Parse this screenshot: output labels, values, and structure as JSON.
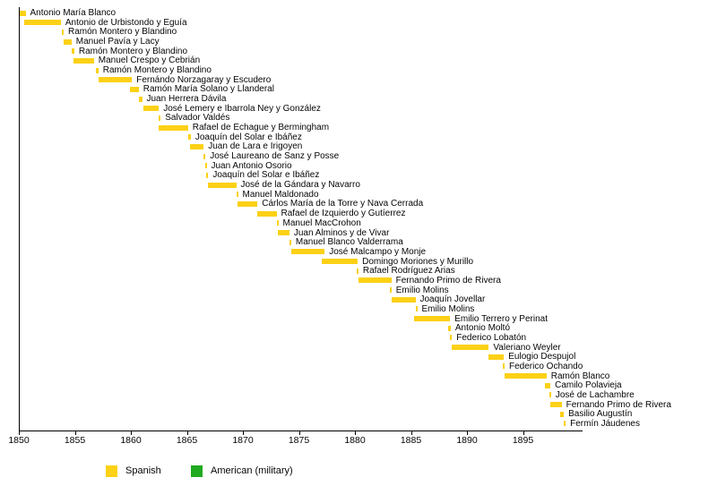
{
  "chart_data": {
    "type": "bar",
    "variant": "horizontal-timeline-gantt",
    "title": "",
    "xlabel": "",
    "ylabel": "",
    "x_axis": {
      "min": 1850,
      "max": 1900,
      "tick_interval": 5,
      "ticks": [
        1850,
        1855,
        1860,
        1865,
        1870,
        1875,
        1880,
        1885,
        1890,
        1895
      ]
    },
    "grid": "off",
    "legend_position": "bottom",
    "legend": [
      {
        "label": "Spanish",
        "color": "#FCD116"
      },
      {
        "label": "American (military)",
        "color": "#20AA20"
      }
    ],
    "bars": [
      {
        "name": "Antonio María Blanco",
        "start": 1850.0,
        "end": 1850.6,
        "category": "Spanish"
      },
      {
        "name": "Antonio de Urbistondo y Eguía",
        "start": 1850.5,
        "end": 1853.75,
        "category": "Spanish"
      },
      {
        "name": "Ramón Montero y Blandino",
        "start": 1853.8,
        "end": 1854.0,
        "category": "Spanish"
      },
      {
        "name": "Manuel Pavía y Lacy",
        "start": 1854.0,
        "end": 1854.7,
        "category": "Spanish"
      },
      {
        "name": "Ramón Montero y Blandino",
        "start": 1854.75,
        "end": 1854.95,
        "category": "Spanish"
      },
      {
        "name": "Manuel Crespo y Cebrián",
        "start": 1854.9,
        "end": 1856.7,
        "category": "Spanish"
      },
      {
        "name": "Ramón Montero y Blandino",
        "start": 1856.85,
        "end": 1857.1,
        "category": "Spanish"
      },
      {
        "name": "Fernándo Norzagaray y Escudero",
        "start": 1857.1,
        "end": 1860.1,
        "category": "Spanish"
      },
      {
        "name": "Ramón María Solano y Llanderal",
        "start": 1859.9,
        "end": 1860.7,
        "category": "Spanish"
      },
      {
        "name": "Juan Herrera Dávila",
        "start": 1860.7,
        "end": 1861.0,
        "category": "Spanish"
      },
      {
        "name": "José Lemery e Ibarrola Ney y González",
        "start": 1861.1,
        "end": 1862.5,
        "category": "Spanish"
      },
      {
        "name": "Salvador Valdés",
        "start": 1862.5,
        "end": 1862.66,
        "category": "Spanish"
      },
      {
        "name": "Rafael de Echague y Bermingham",
        "start": 1862.5,
        "end": 1865.1,
        "category": "Spanish"
      },
      {
        "name": "Joaquín del Solar e Ibáñez",
        "start": 1865.15,
        "end": 1865.35,
        "category": "Spanish"
      },
      {
        "name": "Juan de Lara e Irigoyen",
        "start": 1865.3,
        "end": 1866.5,
        "category": "Spanish"
      },
      {
        "name": "José Laureano de Sanz y Posse",
        "start": 1866.5,
        "end": 1866.66,
        "category": "Spanish"
      },
      {
        "name": "Juan Antonio Osorio",
        "start": 1866.6,
        "end": 1866.76,
        "category": "Spanish"
      },
      {
        "name": "Joaquín del Solar e Ibáñez",
        "start": 1866.75,
        "end": 1866.91,
        "category": "Spanish"
      },
      {
        "name": "José de la Gándara y Navarro",
        "start": 1866.85,
        "end": 1869.4,
        "category": "Spanish"
      },
      {
        "name": "Manuel Maldonado",
        "start": 1869.4,
        "end": 1869.56,
        "category": "Spanish"
      },
      {
        "name": "Cárlos María de la Torre y Nava Cerrada",
        "start": 1869.5,
        "end": 1871.3,
        "category": "Spanish"
      },
      {
        "name": "Rafael de Izquierdo y Gutíerrez",
        "start": 1871.3,
        "end": 1873.0,
        "category": "Spanish"
      },
      {
        "name": "Manuel MacCrohon",
        "start": 1873.0,
        "end": 1873.16,
        "category": "Spanish"
      },
      {
        "name": "Juan Alminos y de Vivar",
        "start": 1873.1,
        "end": 1874.15,
        "category": "Spanish"
      },
      {
        "name": "Manuel Blanco Valderrama",
        "start": 1874.15,
        "end": 1874.31,
        "category": "Spanish"
      },
      {
        "name": "José Malcampo y Monje",
        "start": 1874.3,
        "end": 1877.3,
        "category": "Spanish"
      },
      {
        "name": "Domingo Moriones y Murillo",
        "start": 1877.0,
        "end": 1880.25,
        "category": "Spanish"
      },
      {
        "name": "Rafael Rodríguez Arias",
        "start": 1880.15,
        "end": 1880.31,
        "category": "Spanish"
      },
      {
        "name": "Fernando Primo de Rivera",
        "start": 1880.3,
        "end": 1883.25,
        "category": "Spanish"
      },
      {
        "name": "Emilio Molins",
        "start": 1883.1,
        "end": 1883.26,
        "category": "Spanish"
      },
      {
        "name": "Joaquín Jovellar",
        "start": 1883.25,
        "end": 1885.4,
        "category": "Spanish"
      },
      {
        "name": "Emilio Molins",
        "start": 1885.4,
        "end": 1885.56,
        "category": "Spanish"
      },
      {
        "name": "Emilio Terrero y Perinat",
        "start": 1885.3,
        "end": 1888.5,
        "category": "Spanish"
      },
      {
        "name": "Antonio Moltó",
        "start": 1888.35,
        "end": 1888.55,
        "category": "Spanish"
      },
      {
        "name": "Federico Lobatón",
        "start": 1888.5,
        "end": 1888.66,
        "category": "Spanish"
      },
      {
        "name": "Valeriano Weyler",
        "start": 1888.6,
        "end": 1891.95,
        "category": "Spanish"
      },
      {
        "name": "Eulogio Despujol",
        "start": 1891.9,
        "end": 1893.3,
        "category": "Spanish"
      },
      {
        "name": "Federico Ochando",
        "start": 1893.2,
        "end": 1893.36,
        "category": "Spanish"
      },
      {
        "name": "Ramón Blanco",
        "start": 1893.35,
        "end": 1897.1,
        "category": "Spanish"
      },
      {
        "name": "Camilo Polavieja",
        "start": 1896.95,
        "end": 1897.45,
        "category": "Spanish"
      },
      {
        "name": "José de Lachambre",
        "start": 1897.35,
        "end": 1897.51,
        "category": "Spanish"
      },
      {
        "name": "Fernando Primo de Rivera",
        "start": 1897.4,
        "end": 1898.45,
        "category": "Spanish"
      },
      {
        "name": "Basilio Augustín",
        "start": 1898.35,
        "end": 1898.65,
        "category": "Spanish"
      },
      {
        "name": "Fermín Jáudenes",
        "start": 1898.65,
        "end": 1898.81,
        "category": "Spanish"
      }
    ]
  }
}
